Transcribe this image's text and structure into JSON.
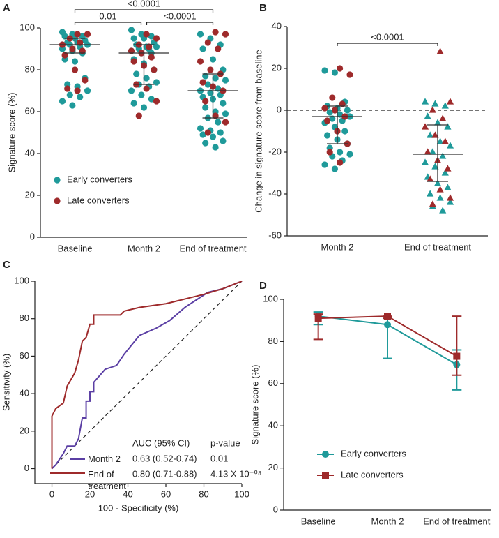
{
  "chart_data": [
    {
      "type": "strip",
      "panel": "A",
      "y_label": "Signature score (%)",
      "categories": [
        "Baseline",
        "Month 2",
        "End of treatment"
      ],
      "ylim": [
        0,
        100
      ],
      "yticks": [
        0,
        20,
        40,
        60,
        80,
        100
      ],
      "legend": "lower left",
      "series": [
        {
          "name": "Early converters",
          "color": "#1f9a9a",
          "marker": "circle",
          "values": [
            [
              98,
              97,
              96,
              96,
              95,
              94,
              93,
              93,
              92,
              92,
              91,
              90,
              89,
              88,
              85,
              84,
              76,
              73,
              72,
              70,
              68,
              67,
              65,
              63
            ],
            [
              99,
              97,
              96,
              95,
              95,
              93,
              92,
              91,
              91,
              90,
              90,
              89,
              88,
              88,
              85,
              83,
              80,
              78,
              76,
              74,
              73,
              72,
              70,
              68,
              66,
              64,
              62
            ],
            [
              97,
              95,
              92,
              90,
              85,
              80,
              77,
              76,
              75,
              73,
              71,
              70,
              69,
              68,
              67,
              66,
              64,
              62,
              60,
              59,
              57,
              55,
              52,
              51,
              50,
              49,
              48,
              46,
              45,
              43
            ]
          ]
        },
        {
          "name": "Late converters",
          "color": "#9e2a2b",
          "marker": "circle",
          "values": [
            [
              97,
              97,
              95,
              93,
              92,
              90,
              89,
              87,
              80,
              75,
              71,
              70
            ],
            [
              97,
              95,
              92,
              91,
              89,
              88,
              86,
              84,
              82,
              80,
              73,
              71,
              65,
              58
            ],
            [
              98,
              97,
              93,
              90,
              84,
              80,
              78,
              74,
              72,
              70,
              65,
              58,
              55,
              50
            ]
          ]
        }
      ],
      "summary": {
        "median": [
          92,
          88,
          70
        ],
        "q1": [
          88,
          73,
          57
        ],
        "q3": [
          95,
          92,
          78
        ]
      },
      "annotations": [
        {
          "text": "<0.0001",
          "between": [
            "Baseline",
            "End of treatment"
          ]
        },
        {
          "text": "0.01",
          "between": [
            "Baseline",
            "Month 2"
          ]
        },
        {
          "text": "<0.0001",
          "between": [
            "Month 2",
            "End of treatment"
          ]
        }
      ]
    },
    {
      "type": "strip",
      "panel": "B",
      "y_label": "Change in signature score from baseline",
      "categories": [
        "Month 2",
        "End of treatment"
      ],
      "markers": [
        "circle",
        "triangle"
      ],
      "ylim": [
        -60,
        40
      ],
      "yticks": [
        -60,
        -40,
        -20,
        0,
        20,
        40
      ],
      "reference_line": 0,
      "series": [
        {
          "name": "Early converters",
          "color": "#1f9a9a",
          "values": [
            [
              19,
              18,
              4,
              2,
              1,
              0,
              -1,
              -2,
              -3,
              -4,
              -5,
              -6,
              -8,
              -10,
              -12,
              -14,
              -16,
              -18,
              -20,
              -21,
              -22,
              -24,
              -26,
              -28
            ],
            [
              4,
              3,
              2,
              -3,
              -6,
              -8,
              -12,
              -15,
              -17,
              -20,
              -22,
              -25,
              -27,
              -30,
              -32,
              -35,
              -37,
              -40,
              -42,
              -44,
              -46,
              -48
            ]
          ]
        },
        {
          "name": "Late converters",
          "color": "#9e2a2b",
          "values": [
            [
              20,
              17,
              6,
              3,
              1,
              0,
              -3,
              -5,
              -10,
              -16,
              -20,
              -25
            ],
            [
              28,
              4,
              0,
              -4,
              -8,
              -12,
              -15,
              -20,
              -24,
              -28,
              -33,
              -38,
              -42,
              -45
            ]
          ]
        }
      ],
      "summary": {
        "median": [
          -3,
          -21
        ],
        "q1": [
          -16,
          -34
        ],
        "q3": [
          2,
          -7
        ]
      },
      "annotations": [
        {
          "text": "<0.0001",
          "between": [
            "Month 2",
            "End of treatment"
          ]
        }
      ]
    },
    {
      "type": "line",
      "panel": "C",
      "x_label": "100 - Specificity (%)",
      "y_label": "Sensitivity (%)",
      "xlim": [
        -9,
        100
      ],
      "ylim": [
        -8,
        100
      ],
      "xticks": [
        0,
        20,
        40,
        60,
        80,
        100
      ],
      "yticks": [
        0,
        20,
        40,
        60,
        80,
        100
      ],
      "reference_diagonal": true,
      "table_header": [
        "AUC (95% CI)",
        "p-value"
      ],
      "series": [
        {
          "name": "Month 2",
          "color": "#5b3fa4",
          "auc": "0.63 (0.52-0.74)",
          "p_value": "0.01",
          "x": [
            0,
            2,
            4,
            6,
            8,
            12,
            14,
            16,
            18,
            18,
            20,
            20,
            22,
            22,
            28,
            34,
            38,
            46,
            55,
            62,
            70,
            76,
            82,
            90,
            100
          ],
          "values": [
            0,
            2,
            5,
            8,
            12,
            12,
            16,
            27,
            27,
            36,
            36,
            41,
            41,
            46,
            53,
            55,
            61,
            71,
            75,
            79,
            86,
            90,
            94,
            96,
            100
          ]
        },
        {
          "name": "End of treatment",
          "color": "#9e2a2b",
          "auc": "0.80 (0.71-0.88)",
          "p_value": "4.13 X 10⁻⁰⁸",
          "x": [
            0,
            0,
            2,
            6,
            8,
            12,
            14,
            16,
            18,
            20,
            22,
            22,
            36,
            38,
            46,
            60,
            72,
            80,
            90,
            100
          ],
          "values": [
            0,
            28,
            32,
            35,
            44,
            51,
            58,
            68,
            70,
            77,
            77,
            82,
            82,
            84,
            86,
            88,
            91,
            93,
            96,
            100
          ]
        }
      ]
    },
    {
      "type": "line",
      "panel": "D",
      "y_label": "Signature score (%)",
      "categories": [
        "Baseline",
        "Month 2",
        "End of treatment"
      ],
      "ylim": [
        0,
        100
      ],
      "yticks": [
        0,
        20,
        40,
        60,
        80,
        100
      ],
      "legend": "lower center",
      "series": [
        {
          "name": "Early converters",
          "color": "#1f9a9a",
          "marker": "circle",
          "values": [
            92,
            88,
            69
          ],
          "lower": [
            88,
            72,
            57
          ],
          "upper": [
            94,
            91,
            76
          ]
        },
        {
          "name": "Late converters",
          "color": "#9e2a2b",
          "marker": "square",
          "values": [
            91,
            92,
            73
          ],
          "lower": [
            81,
            91,
            64
          ],
          "upper": [
            93,
            92,
            92
          ]
        }
      ]
    }
  ]
}
